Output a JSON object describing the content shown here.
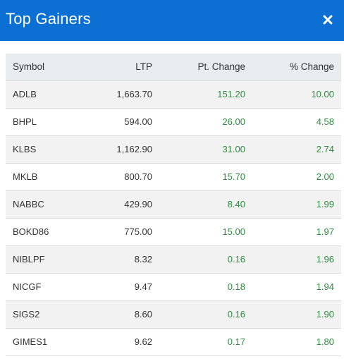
{
  "header": {
    "title": "Top Gainers",
    "close_icon": "close-icon"
  },
  "table": {
    "columns": [
      "Symbol",
      "LTP",
      "Pt. Change",
      "% Change"
    ],
    "rows": [
      {
        "symbol": "ADLB",
        "ltp": "1,663.70",
        "pt_change": "151.20",
        "pct_change": "10.00"
      },
      {
        "symbol": "BHPL",
        "ltp": "594.00",
        "pt_change": "26.00",
        "pct_change": "4.58"
      },
      {
        "symbol": "KLBS",
        "ltp": "1,162.90",
        "pt_change": "31.00",
        "pct_change": "2.74"
      },
      {
        "symbol": "MKLB",
        "ltp": "800.70",
        "pt_change": "15.70",
        "pct_change": "2.00"
      },
      {
        "symbol": "NABBC",
        "ltp": "429.90",
        "pt_change": "8.40",
        "pct_change": "1.99"
      },
      {
        "symbol": "BOKD86",
        "ltp": "775.00",
        "pt_change": "15.00",
        "pct_change": "1.97"
      },
      {
        "symbol": "NIBLPF",
        "ltp": "8.32",
        "pt_change": "0.16",
        "pct_change": "1.96"
      },
      {
        "symbol": "NICGF",
        "ltp": "9.47",
        "pt_change": "0.18",
        "pct_change": "1.94"
      },
      {
        "symbol": "SIGS2",
        "ltp": "8.60",
        "pt_change": "0.16",
        "pct_change": "1.90"
      },
      {
        "symbol": "GIMES1",
        "ltp": "9.62",
        "pt_change": "0.17",
        "pct_change": "1.80"
      }
    ]
  },
  "colors": {
    "header_bg": "#0b6fd3",
    "positive": "#2e8b3e",
    "stripe": "#f2f2f2",
    "table_header_bg": "#e9ecef"
  }
}
